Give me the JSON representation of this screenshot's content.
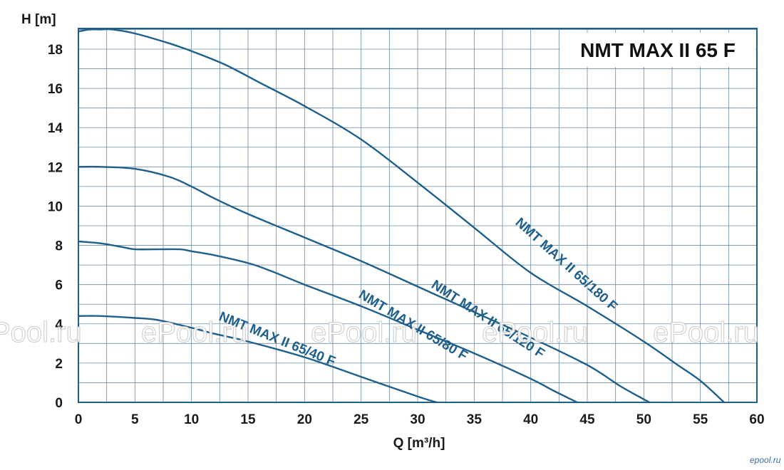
{
  "chart_data": {
    "type": "line",
    "title": "NMT MAX II 65 F",
    "xlabel": "Q [m³/h]",
    "ylabel": "H [m]",
    "xlim": [
      0,
      60
    ],
    "ylim": [
      0,
      19
    ],
    "x_ticks": [
      "0",
      "5",
      "10",
      "15",
      "20",
      "25",
      "30",
      "35",
      "40",
      "45",
      "50",
      "55",
      "60"
    ],
    "y_ticks": [
      "0",
      "2",
      "4",
      "6",
      "8",
      "10",
      "12",
      "14",
      "16",
      "18"
    ],
    "grid": true,
    "line_color": "#1f5f8c",
    "series": [
      {
        "name": "NMT MAX II 65/180 F",
        "x": [
          0,
          1,
          2,
          3,
          5,
          8,
          10,
          13,
          16,
          20,
          25,
          30,
          35,
          40,
          45,
          50,
          53,
          55,
          57.1
        ],
        "y": [
          18.9,
          19.0,
          19.0,
          19.0,
          18.8,
          18.3,
          17.9,
          17.2,
          16.3,
          15.1,
          13.4,
          11.2,
          8.9,
          6.6,
          4.9,
          3.1,
          1.9,
          1.1,
          0
        ]
      },
      {
        "name": "NMT MAX II 65/120 F",
        "x": [
          0,
          2,
          5,
          8,
          10,
          12,
          15,
          20,
          25,
          30,
          35,
          40,
          45,
          48,
          50.5
        ],
        "y": [
          12.0,
          12.0,
          11.9,
          11.5,
          11.0,
          10.4,
          9.6,
          8.4,
          7.2,
          5.9,
          4.6,
          3.3,
          1.9,
          0.8,
          0
        ]
      },
      {
        "name": "NMT MAX II 65/80 F",
        "x": [
          0,
          2,
          4,
          5,
          7,
          9,
          10,
          12,
          15,
          17,
          20,
          25,
          30,
          35,
          40,
          42,
          44.1
        ],
        "y": [
          8.2,
          8.1,
          7.9,
          7.8,
          7.8,
          7.8,
          7.7,
          7.5,
          7.1,
          6.7,
          6.0,
          4.9,
          3.7,
          2.5,
          1.2,
          0.6,
          0
        ]
      },
      {
        "name": "NMT MAX II 65/40 F",
        "x": [
          0,
          2,
          5,
          7,
          10,
          12,
          15,
          20,
          25,
          30,
          31.7
        ],
        "y": [
          4.4,
          4.4,
          4.3,
          4.2,
          3.8,
          3.5,
          3.1,
          2.3,
          1.3,
          0.3,
          0
        ]
      }
    ]
  },
  "watermark": {
    "texts": [
      "Pool.ru",
      "ePool.ru",
      "ePool.ru",
      "ePool.ru",
      "ePool.ru"
    ],
    "corner": "epool.ru"
  }
}
